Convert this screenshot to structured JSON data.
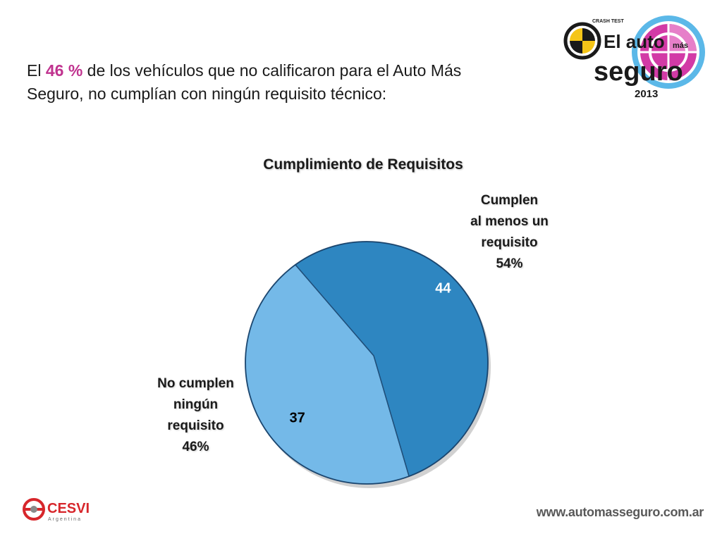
{
  "headline": {
    "prefix": "El ",
    "highlight": "46 %",
    "line1_rest": " de los vehículos que no calificaron para el Auto Más",
    "line2": "Seguro, no cumplían con ningún requisito técnico:"
  },
  "logo": {
    "crash_test": "CRASH TEST",
    "el_auto": "El auto",
    "mas": "más",
    "seguro": "seguro",
    "year": "2013"
  },
  "chart_data": {
    "type": "pie",
    "title": "Cumplimiento de Requisitos",
    "categories": [
      "Cumplen al menos un requisito",
      "No cumplen ningún requisito"
    ],
    "values": [
      44,
      37
    ],
    "percentages": [
      "54%",
      "46%"
    ],
    "colors": [
      "#2e86c1",
      "#74b9e8"
    ],
    "category_labels": [
      {
        "name": "Cumplen\nal menos un\nrequisito",
        "pct": "54%"
      },
      {
        "name": "No cumplen\nningún\nrequisito",
        "pct": "46%"
      }
    ],
    "data_labels": [
      "44",
      "37"
    ],
    "data_label_colors": [
      "#ffffff",
      "#000000"
    ]
  },
  "footer": {
    "cesvi": "CESVI",
    "cesvi_sub": "Argentina",
    "url": "www.automasseguro.com.ar"
  }
}
